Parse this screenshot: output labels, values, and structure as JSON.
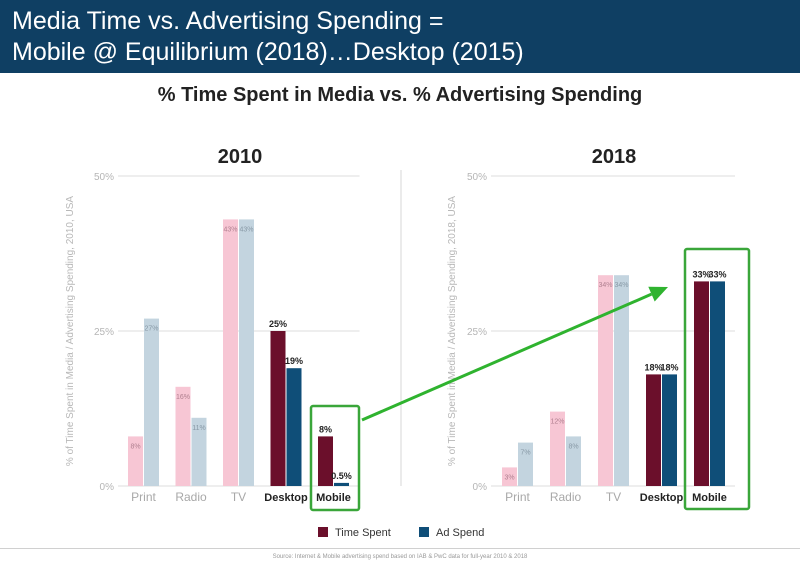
{
  "header": {
    "title_line1": "Media Time vs. Advertising Spending =",
    "title_line2": "Mobile @ Equilibrium (2018)…Desktop (2015)"
  },
  "colors": {
    "header_bg": "#0f3f63",
    "time_spent_dark": "#6b0f2b",
    "ad_spend_dark": "#0f4e78",
    "time_spent_light": "#f7c6d4",
    "ad_spend_light": "#c3d4df",
    "highlight_box": "#3aa63a",
    "arrow": "#2fb32f"
  },
  "source_note": "Source: Internet & Mobile advertising spend based on IAB & PwC data for full-year 2010 & 2018",
  "chart_data": {
    "type": "bar",
    "title": "% Time Spent in Media vs. % Advertising Spending",
    "categories": [
      "Print",
      "Radio",
      "TV",
      "Desktop",
      "Mobile"
    ],
    "highlighted_categories": [
      "Desktop",
      "Mobile"
    ],
    "legend": {
      "position": "bottom",
      "entries": [
        "Time Spent",
        "Ad Spend"
      ]
    },
    "grid": true,
    "panels": [
      {
        "title": "2010",
        "ylabel": "% of Time Spent in Media / Advertising Spending, 2010, USA",
        "ylim": [
          0,
          50
        ],
        "yticks": [
          "0%",
          "25%",
          "50%"
        ],
        "series": [
          {
            "name": "Time Spent",
            "values": [
              8,
              16,
              43,
              25,
              8
            ],
            "labels": [
              "8%",
              "16%",
              "43%",
              "25%",
              "8%"
            ]
          },
          {
            "name": "Ad Spend",
            "values": [
              27,
              11,
              43,
              19,
              0.5
            ],
            "labels": [
              "27%",
              "11%",
              "43%",
              "19%",
              "0.5%"
            ]
          }
        ]
      },
      {
        "title": "2018",
        "ylabel": "% of Time Spent in Media / Advertising Spending, 2018, USA",
        "ylim": [
          0,
          50
        ],
        "yticks": [
          "0%",
          "25%",
          "50%"
        ],
        "series": [
          {
            "name": "Time Spent",
            "values": [
              3,
              12,
              34,
              18,
              33
            ],
            "labels": [
              "3%",
              "12%",
              "34%",
              "18%",
              "33%"
            ]
          },
          {
            "name": "Ad Spend",
            "values": [
              7,
              8,
              34,
              18,
              33
            ],
            "labels": [
              "7%",
              "8%",
              "34%",
              "18%",
              "33%"
            ]
          }
        ]
      }
    ]
  }
}
